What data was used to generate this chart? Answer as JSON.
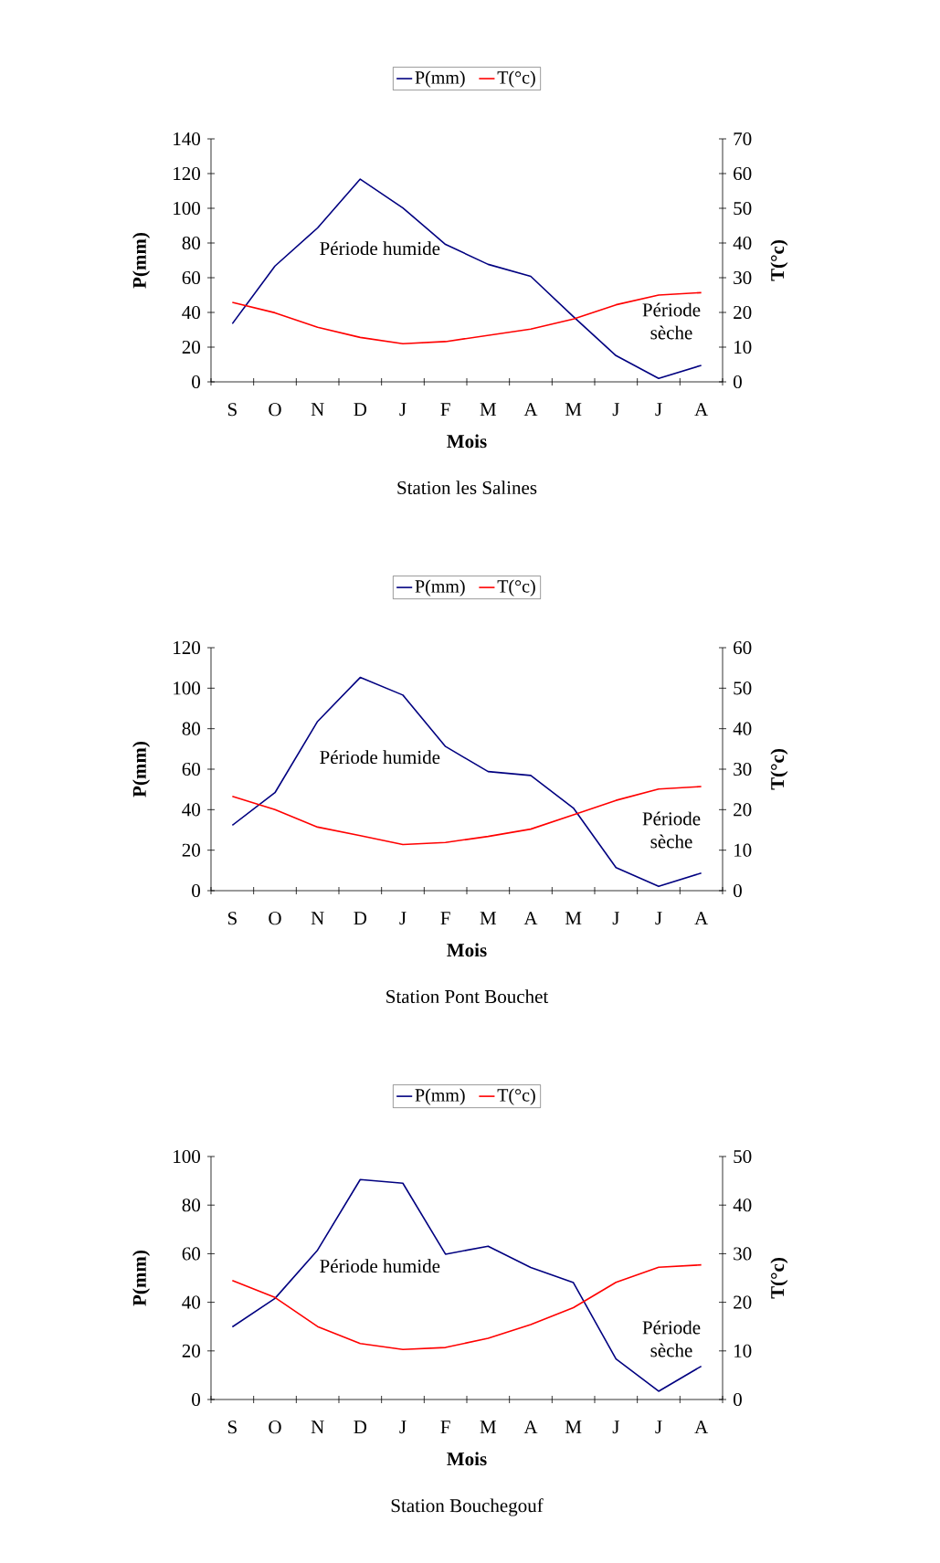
{
  "chart_data": [
    {
      "type": "line",
      "title": "Station les Salines",
      "xlabel": "Mois",
      "ylabel": "P(mm)",
      "y2label": "T(°c)",
      "legend": "top",
      "categories": [
        "S",
        "O",
        "N",
        "D",
        "J",
        "F",
        "M",
        "A",
        "M",
        "J",
        "J",
        "A"
      ],
      "ylim": [
        0,
        140
      ],
      "yticks": [
        0,
        20,
        40,
        60,
        80,
        100,
        120,
        140
      ],
      "y2lim": [
        0,
        70
      ],
      "y2ticks": [
        0,
        10,
        20,
        30,
        40,
        50,
        60,
        70
      ],
      "annotations": [
        "Période humide",
        "Période sèche"
      ],
      "series": [
        {
          "name": "P(mm)",
          "color": "#000080",
          "values": [
            33.5,
            66.7,
            88.7,
            116.8,
            100.2,
            79.2,
            67.7,
            60.8,
            37.6,
            15.1,
            2,
            9.5
          ]
        },
        {
          "name": "T(°c)",
          "color": "#ff0000",
          "axis": "y2",
          "values": [
            22.9,
            19.9,
            15.7,
            12.8,
            11.0,
            11.6,
            13.4,
            15.2,
            18.1,
            22.2,
            25.0,
            25.7
          ]
        }
      ]
    },
    {
      "type": "line",
      "title": "Station Pont Bouchet",
      "xlabel": "Mois",
      "ylabel": "P(mm)",
      "y2label": "T(°c)",
      "legend": "top",
      "categories": [
        "S",
        "O",
        "N",
        "D",
        "J",
        "F",
        "M",
        "A",
        "M",
        "J",
        "J",
        "A"
      ],
      "ylim": [
        0,
        120
      ],
      "yticks": [
        0,
        20,
        40,
        60,
        80,
        100,
        120
      ],
      "y2lim": [
        0,
        60
      ],
      "y2ticks": [
        0,
        10,
        20,
        30,
        40,
        50,
        60
      ],
      "annotations": [
        "Période humide",
        "Période sèche"
      ],
      "series": [
        {
          "name": "P(mm)",
          "color": "#000080",
          "values": [
            32.3,
            48.4,
            83.6,
            105.3,
            96.6,
            71.2,
            58.8,
            56.9,
            40.8,
            11.4,
            2.1,
            8.7
          ]
        },
        {
          "name": "T(°c)",
          "color": "#ff0000",
          "axis": "y2",
          "values": [
            23.3,
            20.0,
            15.7,
            13.6,
            11.4,
            11.9,
            13.4,
            15.2,
            18.7,
            22.3,
            25.1,
            25.7
          ]
        }
      ]
    },
    {
      "type": "line",
      "title": "Station Bouchegouf",
      "xlabel": "Mois",
      "ylabel": "P(mm)",
      "y2label": "T(°c)",
      "legend": "top",
      "categories": [
        "S",
        "O",
        "N",
        "D",
        "J",
        "F",
        "M",
        "A",
        "M",
        "J",
        "J",
        "A"
      ],
      "ylim": [
        0,
        100
      ],
      "yticks": [
        0,
        20,
        40,
        60,
        80,
        100
      ],
      "y2lim": [
        0,
        50
      ],
      "y2ticks": [
        0,
        10,
        20,
        30,
        40,
        50
      ],
      "annotations": [
        "Période humide",
        "Période sèche"
      ],
      "series": [
        {
          "name": "P(mm)",
          "color": "#000080",
          "values": [
            29.9,
            41.6,
            61.5,
            90.5,
            89.0,
            59.8,
            63.1,
            54.3,
            48.1,
            16.7,
            3.4,
            13.7
          ]
        },
        {
          "name": "T(°c)",
          "color": "#ff0000",
          "axis": "y2",
          "values": [
            24.5,
            21.0,
            15.0,
            11.5,
            10.3,
            10.7,
            12.6,
            15.4,
            18.9,
            24.1,
            27.2,
            27.7
          ]
        }
      ]
    }
  ]
}
